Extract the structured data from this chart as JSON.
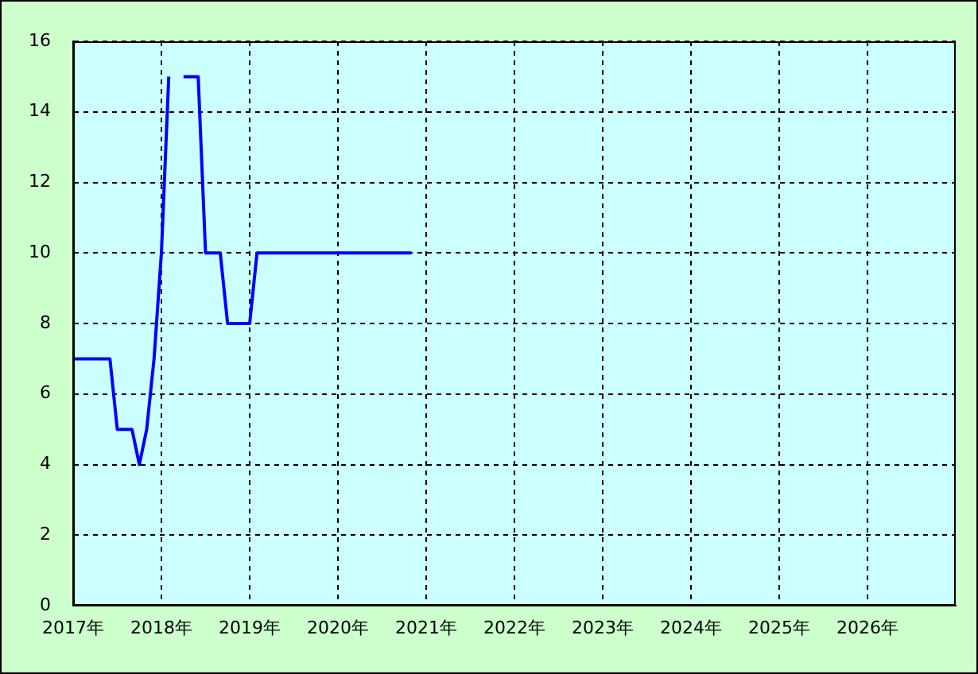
{
  "chart_data": {
    "type": "line",
    "x": [
      "2017-01",
      "2017-06",
      "2017-07",
      "2017-09",
      "2017-10",
      "2017-11",
      "2017-12",
      "2018-01",
      "2018-02",
      "2018-03",
      "2018-04",
      "2018-06",
      "2018-07",
      "2018-09",
      "2018-10",
      "2019-01",
      "2019-02",
      "2020-11"
    ],
    "series": [
      {
        "color": "#0000ff",
        "values": [
          7,
          7,
          5,
          5,
          4,
          5,
          7,
          10,
          15,
          null,
          15,
          15,
          10,
          10,
          8,
          8,
          10,
          10
        ]
      }
    ],
    "xlim": [
      "2017-01",
      "2027-01"
    ],
    "xticks": [
      {
        "value": "2017",
        "label": "2017年"
      },
      {
        "value": "2018",
        "label": "2018年"
      },
      {
        "value": "2019",
        "label": "2019年"
      },
      {
        "value": "2020",
        "label": "2020年"
      },
      {
        "value": "2021",
        "label": "2021年"
      },
      {
        "value": "2022",
        "label": "2022年"
      },
      {
        "value": "2023",
        "label": "2023年"
      },
      {
        "value": "2024",
        "label": "2024年"
      },
      {
        "value": "2025",
        "label": "2025年"
      },
      {
        "value": "2026",
        "label": "2026年"
      }
    ],
    "ylim": [
      0,
      16
    ],
    "yticks": [
      0,
      2,
      4,
      6,
      8,
      10,
      12,
      14,
      16
    ],
    "grid": true,
    "legend": false,
    "marker": "none",
    "line_style": "solid"
  }
}
